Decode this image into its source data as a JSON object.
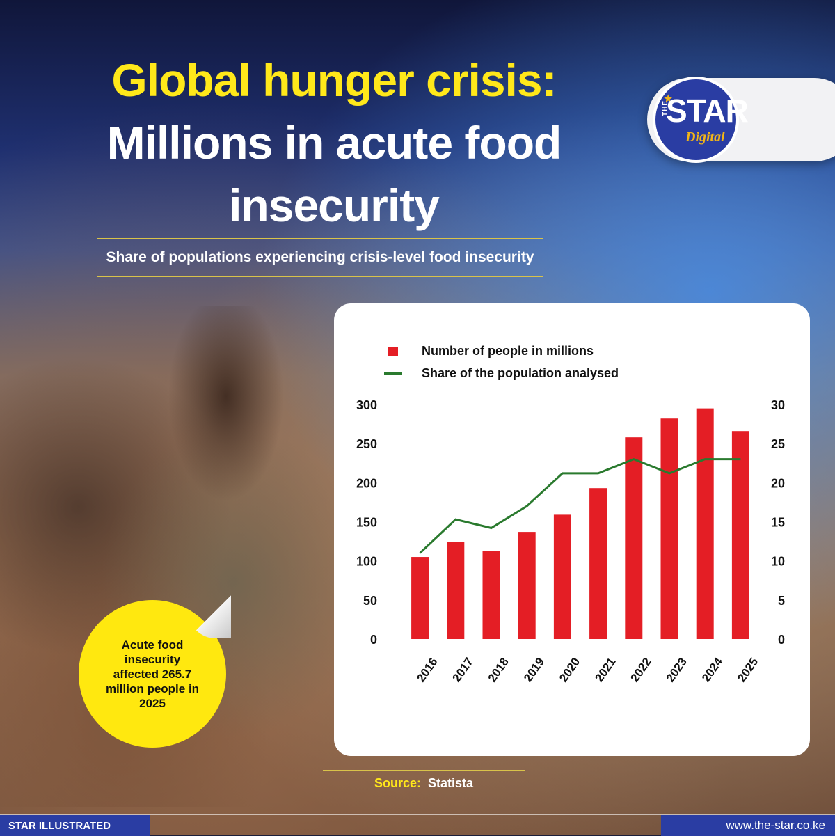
{
  "header": {
    "title_line1": "Global hunger crisis:",
    "title_line2": "Millions in acute food",
    "title_line3": "insecurity",
    "subtitle": "Share of populations experiencing crisis-level food insecurity"
  },
  "logo": {
    "the": "THE",
    "word": "STAR",
    "tagline": "Digital"
  },
  "colors": {
    "bar": "#e41e25",
    "line": "#2a7a2e",
    "accent_yellow": "#ffe81a",
    "brand_blue": "#2a3da3"
  },
  "sticker": {
    "text": "Acute food insecurity affected 265.7 million people in 2025"
  },
  "source": {
    "label": "Source:",
    "name": "Statista"
  },
  "footer": {
    "left": "STAR ILLUSTRATED",
    "right": "www.the-star.co.ke"
  },
  "chart_data": {
    "type": "bar",
    "categories": [
      "2016",
      "2017",
      "2018",
      "2019",
      "2020",
      "2021",
      "2022",
      "2023",
      "2024",
      "2025"
    ],
    "series": [
      {
        "name": "Number of people in millions",
        "type": "bar",
        "axis": "left",
        "values": [
          105,
          124,
          113,
          137,
          159,
          193,
          258,
          282,
          295,
          266
        ]
      },
      {
        "name": "Share of the population analysed",
        "type": "line",
        "axis": "right",
        "values": [
          11,
          15.3,
          14.2,
          17,
          21.2,
          21.2,
          23,
          21.2,
          23,
          23
        ]
      }
    ],
    "y_left": {
      "ticks": [
        0,
        50,
        100,
        150,
        200,
        250,
        300
      ],
      "ylim": [
        0,
        300
      ]
    },
    "y_right": {
      "ticks": [
        0,
        5,
        10,
        15,
        20,
        25,
        30
      ],
      "ylim": [
        0,
        30
      ]
    },
    "legend_position": "top-left",
    "grid": false
  }
}
